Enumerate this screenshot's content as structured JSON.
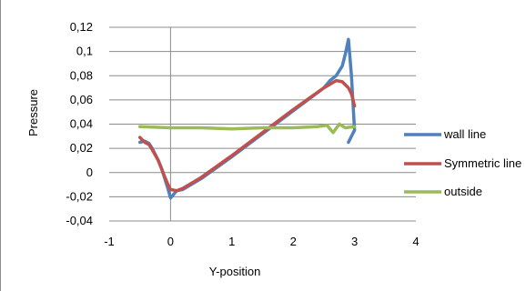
{
  "chart_data": {
    "type": "line",
    "title": "",
    "xlabel": "Y-position",
    "ylabel": "Pressure",
    "xlim": [
      -1,
      4
    ],
    "ylim": [
      -0.04,
      0.12
    ],
    "x_ticks": [
      "-1",
      "0",
      "1",
      "2",
      "3",
      "4"
    ],
    "y_ticks": [
      "-0,04",
      "-0,02",
      "0",
      "0,02",
      "0,04",
      "0,06",
      "0,08",
      "0,1",
      "0,12"
    ],
    "grid": "horizontal",
    "legend_position": "right",
    "series": [
      {
        "name": "wall line",
        "color": "#4f81bd",
        "points": [
          [
            -0.5,
            0.025
          ],
          [
            -0.42,
            0.026
          ],
          [
            -0.35,
            0.024
          ],
          [
            -0.3,
            0.02
          ],
          [
            -0.25,
            0.015
          ],
          [
            -0.2,
            0.01
          ],
          [
            -0.15,
            0.004
          ],
          [
            -0.1,
            -0.004
          ],
          [
            -0.05,
            -0.012
          ],
          [
            0.0,
            -0.021
          ],
          [
            0.05,
            -0.018
          ],
          [
            0.1,
            -0.015
          ],
          [
            0.2,
            -0.014
          ],
          [
            0.5,
            -0.005
          ],
          [
            1.0,
            0.013
          ],
          [
            1.5,
            0.032
          ],
          [
            2.0,
            0.051
          ],
          [
            2.5,
            0.07
          ],
          [
            2.6,
            0.076
          ],
          [
            2.7,
            0.08
          ],
          [
            2.8,
            0.088
          ],
          [
            2.85,
            0.098
          ],
          [
            2.9,
            0.11
          ],
          [
            2.95,
            0.08
          ],
          [
            3.0,
            0.035
          ],
          [
            2.95,
            0.03
          ],
          [
            2.9,
            0.025
          ]
        ]
      },
      {
        "name": "Symmetric line",
        "color": "#c0504d",
        "points": [
          [
            -0.5,
            0.029
          ],
          [
            -0.42,
            0.025
          ],
          [
            -0.35,
            0.023
          ],
          [
            -0.3,
            0.019
          ],
          [
            -0.2,
            0.01
          ],
          [
            -0.1,
            -0.003
          ],
          [
            -0.05,
            -0.009
          ],
          [
            0.0,
            -0.014
          ],
          [
            0.1,
            -0.015
          ],
          [
            0.2,
            -0.013
          ],
          [
            0.5,
            -0.004
          ],
          [
            1.0,
            0.014
          ],
          [
            1.5,
            0.033
          ],
          [
            2.0,
            0.052
          ],
          [
            2.5,
            0.07
          ],
          [
            2.7,
            0.076
          ],
          [
            2.8,
            0.075
          ],
          [
            2.9,
            0.07
          ],
          [
            2.95,
            0.065
          ],
          [
            3.0,
            0.055
          ]
        ]
      },
      {
        "name": "outside",
        "color": "#9bbb59",
        "points": [
          [
            -0.5,
            0.038
          ],
          [
            0.0,
            0.037
          ],
          [
            0.5,
            0.037
          ],
          [
            1.0,
            0.036
          ],
          [
            1.5,
            0.037
          ],
          [
            2.0,
            0.037
          ],
          [
            2.4,
            0.038
          ],
          [
            2.55,
            0.039
          ],
          [
            2.65,
            0.033
          ],
          [
            2.75,
            0.04
          ],
          [
            2.85,
            0.037
          ],
          [
            3.0,
            0.038
          ]
        ]
      }
    ]
  }
}
